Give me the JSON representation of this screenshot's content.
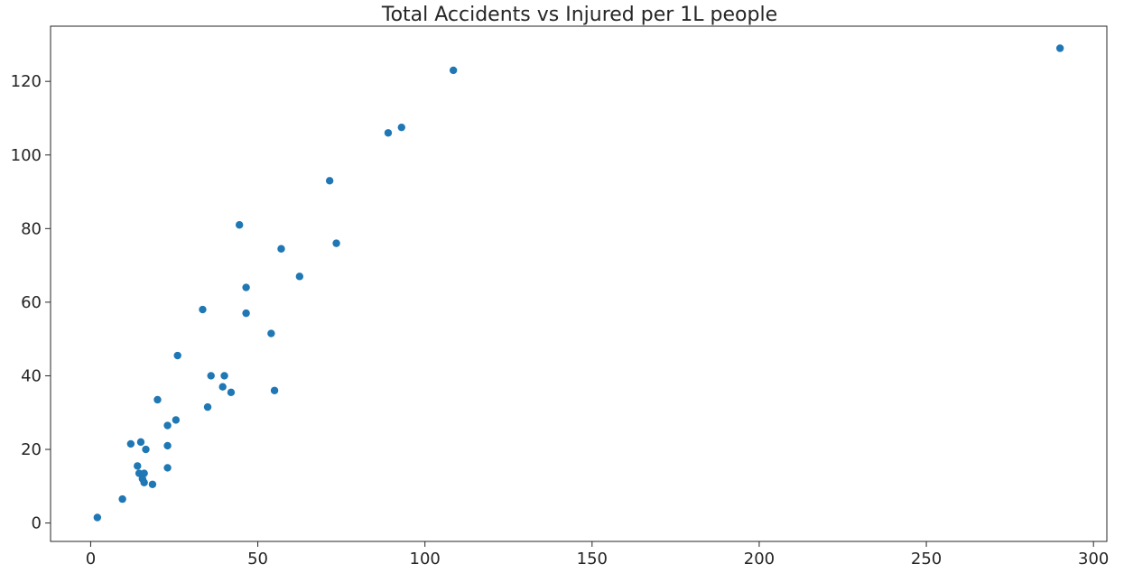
{
  "chart_data": {
    "type": "scatter",
    "title": "Total Accidents vs Injured per 1L people",
    "xlabel": "",
    "ylabel": "",
    "xlim": [
      -12,
      304
    ],
    "ylim": [
      -5,
      135
    ],
    "x_ticks": [
      0,
      50,
      100,
      150,
      200,
      250,
      300
    ],
    "y_ticks": [
      0,
      20,
      40,
      60,
      80,
      100,
      120
    ],
    "grid": false,
    "color": "#1f77b4",
    "points": [
      {
        "x": 2,
        "y": 1.5
      },
      {
        "x": 9.5,
        "y": 6.5
      },
      {
        "x": 12,
        "y": 21.5
      },
      {
        "x": 14,
        "y": 15.5
      },
      {
        "x": 14.5,
        "y": 13.5
      },
      {
        "x": 15,
        "y": 22
      },
      {
        "x": 15.5,
        "y": 12
      },
      {
        "x": 16,
        "y": 13.5
      },
      {
        "x": 16,
        "y": 11
      },
      {
        "x": 16.5,
        "y": 20
      },
      {
        "x": 18.5,
        "y": 10.5
      },
      {
        "x": 20,
        "y": 33.5
      },
      {
        "x": 23,
        "y": 26.5
      },
      {
        "x": 23,
        "y": 21
      },
      {
        "x": 23,
        "y": 15
      },
      {
        "x": 25.5,
        "y": 28
      },
      {
        "x": 26,
        "y": 45.5
      },
      {
        "x": 33.5,
        "y": 58
      },
      {
        "x": 35,
        "y": 31.5
      },
      {
        "x": 36,
        "y": 40
      },
      {
        "x": 39.5,
        "y": 37
      },
      {
        "x": 40,
        "y": 40
      },
      {
        "x": 42,
        "y": 35.5
      },
      {
        "x": 44.5,
        "y": 81
      },
      {
        "x": 46.5,
        "y": 64
      },
      {
        "x": 46.5,
        "y": 57
      },
      {
        "x": 54,
        "y": 51.5
      },
      {
        "x": 55,
        "y": 36
      },
      {
        "x": 57,
        "y": 74.5
      },
      {
        "x": 62.5,
        "y": 67
      },
      {
        "x": 71.5,
        "y": 93
      },
      {
        "x": 73.5,
        "y": 76
      },
      {
        "x": 89,
        "y": 106
      },
      {
        "x": 93,
        "y": 107.5
      },
      {
        "x": 108.5,
        "y": 123
      },
      {
        "x": 290,
        "y": 129
      }
    ]
  }
}
